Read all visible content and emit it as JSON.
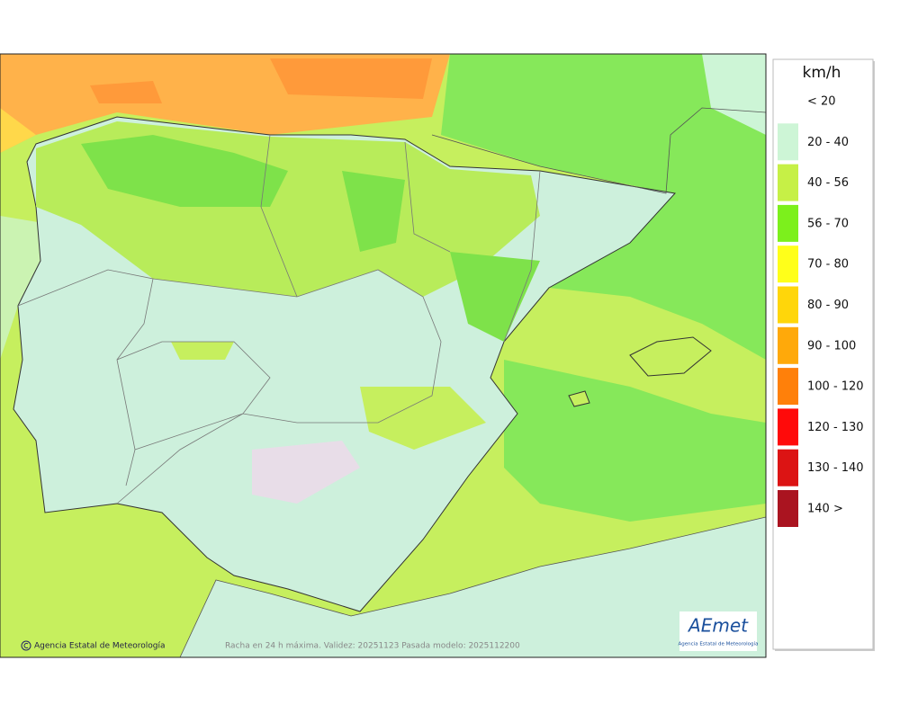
{
  "legend": {
    "unit": "km/h",
    "items": [
      {
        "label": "< 20",
        "color": "#ffffff"
      },
      {
        "label": "20 - 40",
        "color": "#cdf5d6"
      },
      {
        "label": "40 - 56",
        "color": "#c6f046"
      },
      {
        "label": "56 - 70",
        "color": "#7cf01c"
      },
      {
        "label": "70 - 80",
        "color": "#ffff1a"
      },
      {
        "label": "80 - 90",
        "color": "#ffd60a"
      },
      {
        "label": "90 - 100",
        "color": "#ffa90a"
      },
      {
        "label": "100 - 120",
        "color": "#ff800a"
      },
      {
        "label": "120 - 130",
        "color": "#ff0a0a"
      },
      {
        "label": "130 - 140",
        "color": "#dc1414"
      },
      {
        "label": "140 >",
        "color": "#aa1420"
      }
    ]
  },
  "footer": {
    "credit": "Agencia Estatal de Meteorología",
    "caption": "Racha en 24 h máxima. Validez: 20251123 Pasada modelo: 2025112200"
  },
  "logo": {
    "name": "AEmet",
    "subtitle": "Agencia Estatal de Meteorología"
  }
}
